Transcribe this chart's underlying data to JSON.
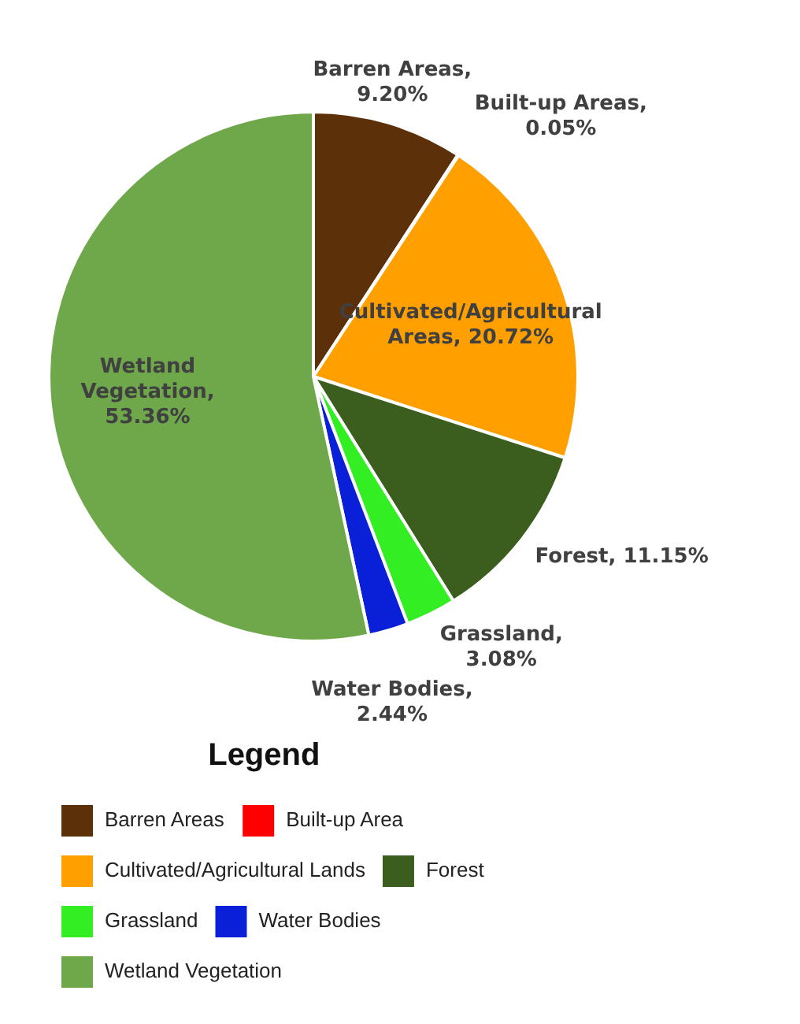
{
  "chart_data": {
    "type": "pie",
    "legend_title": "Legend",
    "legend": "bottom",
    "categories": [
      "Barren Areas",
      "Built-up Area",
      "Cultivated/Agricultural Lands",
      "Forest",
      "Grassland",
      "Water Bodies",
      "Wetland Vegetation"
    ],
    "values": [
      9.2,
      0.05,
      20.72,
      11.15,
      3.08,
      2.44,
      53.36
    ],
    "colors": [
      "#5c3008",
      "#ff0000",
      "#ffa000",
      "#3b5e1e",
      "#33ee22",
      "#0a1fd8",
      "#6fa84a"
    ],
    "value_labels": [
      "Barren Areas, 9.20%",
      "Built-up Areas, 0.05%",
      "Cultivated/Agricultural Areas, 20.72%",
      "Forest, 11.15%",
      "Grassland, 3.08%",
      "Water Bodies, 2.44%",
      "Wetland Vegetation, 53.36%"
    ]
  }
}
